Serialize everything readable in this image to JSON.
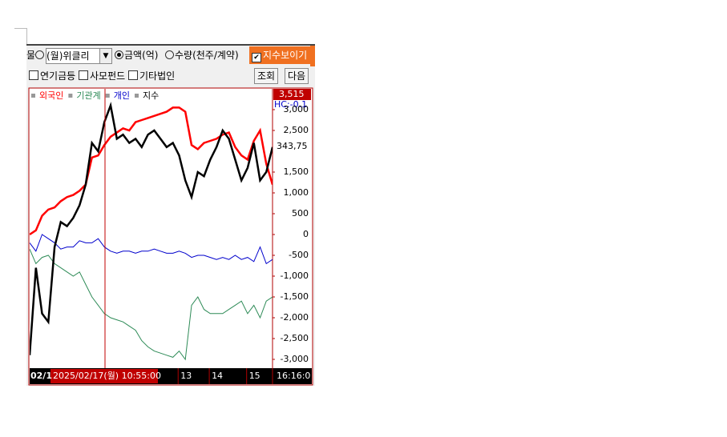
{
  "toolbar": {
    "period_prefix": "물",
    "period": "(월)위클리",
    "unit_amount": "금액(억)",
    "unit_quantity": "수량(천주/계약)",
    "show_index": "지수보이기",
    "filters": [
      "연기금등",
      "사모펀드",
      "기타법인"
    ],
    "buttons": [
      "조회",
      "다음"
    ]
  },
  "chart_data": {
    "type": "line",
    "categories": [
      "02/1",
      null,
      null,
      null,
      null,
      null,
      null,
      null,
      null,
      null,
      null,
      null,
      null,
      null,
      null,
      null,
      null,
      null,
      null,
      null,
      null,
      null,
      null,
      null,
      null,
      "13",
      null,
      null,
      null,
      null,
      "14",
      null,
      null,
      null,
      null,
      null,
      "15",
      null,
      null,
      null
    ],
    "series": [
      {
        "name": "외국인",
        "color": "#ff0000",
        "values": [
          0,
          100,
          450,
          600,
          650,
          800,
          900,
          950,
          1050,
          1200,
          1850,
          1900,
          2150,
          2350,
          2450,
          2550,
          2500,
          2700,
          2750,
          2800,
          2850,
          2900,
          2950,
          3050,
          3050,
          2950,
          2150,
          2050,
          2200,
          2250,
          2300,
          2400,
          2450,
          2100,
          1900,
          1800,
          2250,
          2500,
          1700,
          1200
        ]
      },
      {
        "name": "기관계",
        "color": "#2e8b57",
        "values": [
          -350,
          -700,
          -550,
          -500,
          -700,
          -800,
          -900,
          -1000,
          -900,
          -1200,
          -1500,
          -1700,
          -1900,
          -2000,
          -2050,
          -2100,
          -2200,
          -2300,
          -2550,
          -2700,
          -2800,
          -2850,
          -2900,
          -2950,
          -2800,
          -3000,
          -1700,
          -1500,
          -1800,
          -1900,
          -1900,
          -1900,
          -1800,
          -1700,
          -1600,
          -1900,
          -1700,
          -2000,
          -1600,
          -1500
        ]
      },
      {
        "name": "개인",
        "color": "#0000cc",
        "values": [
          -200,
          -400,
          0,
          -100,
          -200,
          -350,
          -300,
          -300,
          -150,
          -200,
          -200,
          -100,
          -300,
          -400,
          -450,
          -400,
          -400,
          -450,
          -400,
          -400,
          -350,
          -400,
          -450,
          -450,
          -400,
          -450,
          -550,
          -500,
          -500,
          -550,
          -600,
          -550,
          -600,
          -500,
          -600,
          -550,
          -650,
          -300,
          -700,
          -600
        ]
      },
      {
        "name": "지수",
        "color": "#000000",
        "values": [
          -2900,
          -800,
          -1900,
          -2100,
          -300,
          300,
          200,
          400,
          700,
          1200,
          2200,
          2000,
          2700,
          3100,
          2300,
          2400,
          2200,
          2300,
          2100,
          2400,
          2500,
          2300,
          2100,
          2200,
          1900,
          1300,
          900,
          1500,
          1400,
          1800,
          2100,
          2500,
          2300,
          1800,
          1300,
          1600,
          2200,
          1300,
          1500,
          2100
        ]
      }
    ],
    "ylim": [
      -3250,
      3365
    ],
    "yticks": [
      {
        "value": 3000,
        "label": "3,000"
      },
      {
        "value": 2500,
        "label": "2,500"
      },
      {
        "value": 1500,
        "label": "1,500"
      },
      {
        "value": 1000,
        "label": "1,000"
      },
      500,
      0,
      -500,
      {
        "value": -1000,
        "label": "-1,000"
      },
      {
        "value": -1500,
        "label": "-1,500"
      },
      {
        "value": -2000,
        "label": "-2,000"
      },
      {
        "value": -2500,
        "label": "-2,500"
      },
      {
        "value": -3000,
        "label": "-3,000"
      }
    ],
    "top_tag": "3,515",
    "index_tag": "343,75",
    "hc_label": "HC:-0.1",
    "crosshair_label": "2025/02/17(월) 10:55:00",
    "time_label": "16:16:0"
  }
}
